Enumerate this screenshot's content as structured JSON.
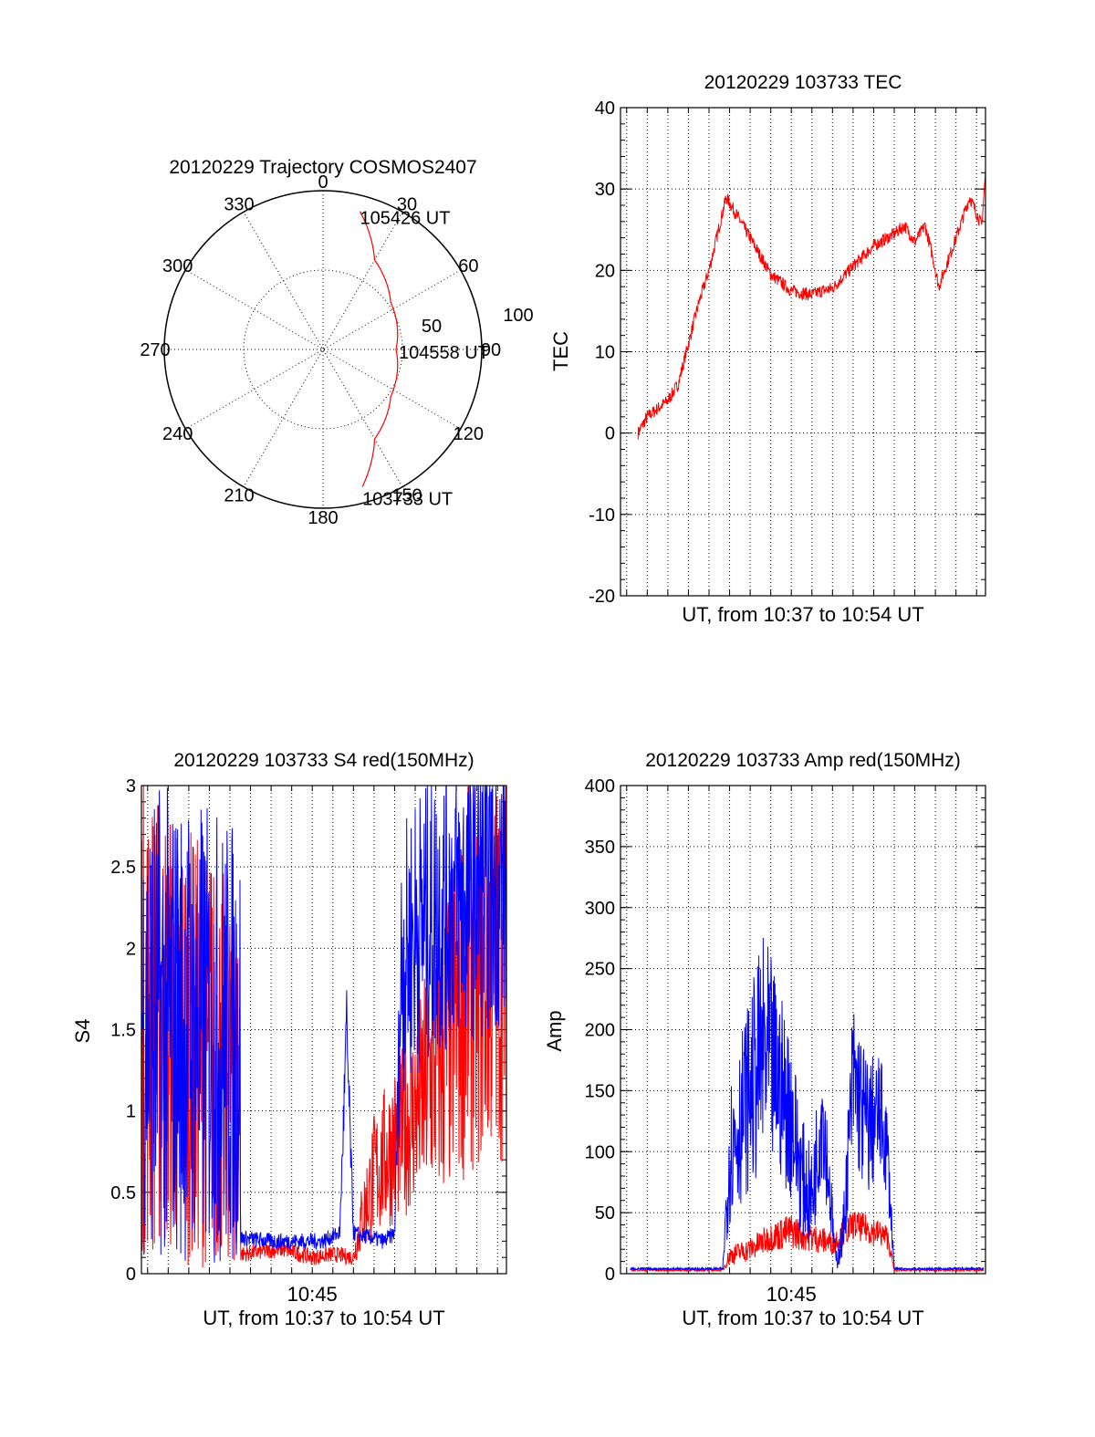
{
  "chart_data": [
    {
      "id": "trajectory",
      "type": "polar",
      "title": "20120229 Trajectory COSMOS2407",
      "angle_labels": [
        "0",
        "30",
        "60",
        "90",
        "120",
        "150",
        "180",
        "210",
        "240",
        "270",
        "300",
        "330"
      ],
      "radius_labels": [
        "50",
        "100"
      ],
      "rlim": [
        0,
        100
      ],
      "series": [
        {
          "color": "#ff0000",
          "points": [
            {
              "az": 15,
              "r": 90
            },
            {
              "az": 30,
              "r": 65
            },
            {
              "az": 55,
              "r": 52
            },
            {
              "az": 90,
              "r": 46
            },
            {
              "az": 125,
              "r": 52
            },
            {
              "az": 150,
              "r": 65
            },
            {
              "az": 164,
              "r": 90
            }
          ]
        }
      ],
      "annotations": [
        {
          "text": "105426 UT",
          "az": 15,
          "r": 90
        },
        {
          "text": "104558 UT",
          "az": 90,
          "r": 46
        },
        {
          "text": "103733 UT",
          "az": 164,
          "r": 90
        }
      ]
    },
    {
      "id": "tec",
      "type": "line",
      "title": "20120229 103733 TEC",
      "xlabel": "UT, from 10:37 to 10:54 UT",
      "ylabel": "TEC",
      "xlim": [
        "10:36:42",
        "10:54:26"
      ],
      "ylim": [
        -20,
        40
      ],
      "yticks": [
        "-20",
        "-10",
        "0",
        "10",
        "20",
        "30",
        "40"
      ],
      "xticks": [],
      "grid": true,
      "series": [
        {
          "color": "#ff0000",
          "x": [
            "10:37:33",
            "10:38:00",
            "10:39:00",
            "10:39:30",
            "10:40:00",
            "10:40:30",
            "10:41:00",
            "10:41:50",
            "10:43:00",
            "10:44:00",
            "10:45:00",
            "10:46:00",
            "10:46:30",
            "10:47:00",
            "10:48:00",
            "10:49:00",
            "10:50:00",
            "10:50:30",
            "10:51:00",
            "10:51:30",
            "10:51:50",
            "10:52:10",
            "10:53:00",
            "10:53:40",
            "10:54:15",
            "10:54:26"
          ],
          "y": [
            0,
            2,
            4,
            6,
            11,
            16,
            20,
            29,
            24,
            19.5,
            17.5,
            17,
            17.5,
            17.8,
            20.5,
            23,
            24.5,
            25.5,
            23.5,
            25.5,
            22,
            18,
            24,
            29,
            25.5,
            32
          ],
          "noise": 0.8
        }
      ]
    },
    {
      "id": "s4",
      "type": "line",
      "title": "20120229 103733 S4 red(150MHz)",
      "xlabel": "UT, from 10:37 to 10:54 UT",
      "ylabel": "S4",
      "xlim": [
        "10:36:42",
        "10:54:26"
      ],
      "ylim": [
        0,
        3
      ],
      "yticks": [
        "0",
        "0.5",
        "1",
        "1.5",
        "2",
        "2.5",
        "3"
      ],
      "xticks": [
        "10:45"
      ],
      "grid": true,
      "series": [
        {
          "color": "#ff0000",
          "x": [
            "10:36:42",
            "10:41:30",
            "10:41:31",
            "10:43:30",
            "10:45:00",
            "10:46:00",
            "10:47:00",
            "10:47:20",
            "10:48:00",
            "10:50:00",
            "10:51:30",
            "10:52:30",
            "10:54:26"
          ],
          "y": [
            1.6,
            1.2,
            0.12,
            0.15,
            0.1,
            0.12,
            0.1,
            0.3,
            0.6,
            1.0,
            1.4,
            1.8,
            1.9
          ],
          "noise": [
            1.5,
            1.2,
            0.05,
            0.05,
            0.05,
            0.05,
            0.05,
            0.2,
            0.4,
            0.6,
            1.0,
            1.2,
            1.2
          ]
        },
        {
          "color": "#0000ff",
          "x": [
            "10:36:42",
            "10:41:30",
            "10:41:31",
            "10:43:00",
            "10:44:30",
            "10:45:30",
            "10:46:20",
            "10:46:40",
            "10:47:00",
            "10:48:30",
            "10:49:00",
            "10:49:20",
            "10:50:00",
            "10:52:00",
            "10:54:26"
          ],
          "y": [
            1.6,
            1.4,
            0.22,
            0.2,
            0.2,
            0.2,
            0.25,
            1.5,
            0.25,
            0.2,
            0.25,
            1.9,
            2.1,
            2.3,
            2.4
          ],
          "noise": [
            1.5,
            1.4,
            0.05,
            0.05,
            0.05,
            0.05,
            0.05,
            0.3,
            0.05,
            0.05,
            0.05,
            0.8,
            0.9,
            0.9,
            0.9
          ]
        }
      ]
    },
    {
      "id": "amp",
      "type": "line",
      "title": "20120229 103733 Amp red(150MHz)",
      "xlabel": "UT, from 10:37 to 10:54 UT",
      "ylabel": "Amp",
      "xlim": [
        "10:36:42",
        "10:54:26"
      ],
      "ylim": [
        0,
        400
      ],
      "yticks": [
        "0",
        "50",
        "100",
        "150",
        "200",
        "250",
        "300",
        "350",
        "400"
      ],
      "xticks": [
        "10:45"
      ],
      "grid": true,
      "series": [
        {
          "color": "#ff0000",
          "x": [
            "10:37:10",
            "10:41:40",
            "10:42:00",
            "10:43:00",
            "10:44:00",
            "10:45:00",
            "10:46:00",
            "10:47:00",
            "10:48:00",
            "10:49:00",
            "10:49:40",
            "10:50:00",
            "10:54:20"
          ],
          "y": [
            3,
            3,
            15,
            20,
            30,
            35,
            30,
            25,
            40,
            35,
            30,
            3,
            3
          ],
          "noise": [
            1,
            1,
            8,
            10,
            12,
            15,
            12,
            10,
            12,
            12,
            10,
            1,
            1
          ]
        },
        {
          "color": "#0000ff",
          "x": [
            "10:37:10",
            "10:41:40",
            "10:42:00",
            "10:43:00",
            "10:43:40",
            "10:44:20",
            "10:45:00",
            "10:45:30",
            "10:46:00",
            "10:46:30",
            "10:47:10",
            "10:47:30",
            "10:48:00",
            "10:48:40",
            "10:49:20",
            "10:49:40",
            "10:50:00",
            "10:54:20"
          ],
          "y": [
            4,
            4,
            100,
            150,
            180,
            160,
            130,
            80,
            60,
            140,
            10,
            30,
            160,
            120,
            130,
            100,
            4,
            4
          ],
          "noise": [
            1,
            1,
            60,
            80,
            100,
            80,
            70,
            50,
            40,
            60,
            8,
            20,
            70,
            60,
            50,
            40,
            1,
            1
          ]
        }
      ]
    }
  ]
}
